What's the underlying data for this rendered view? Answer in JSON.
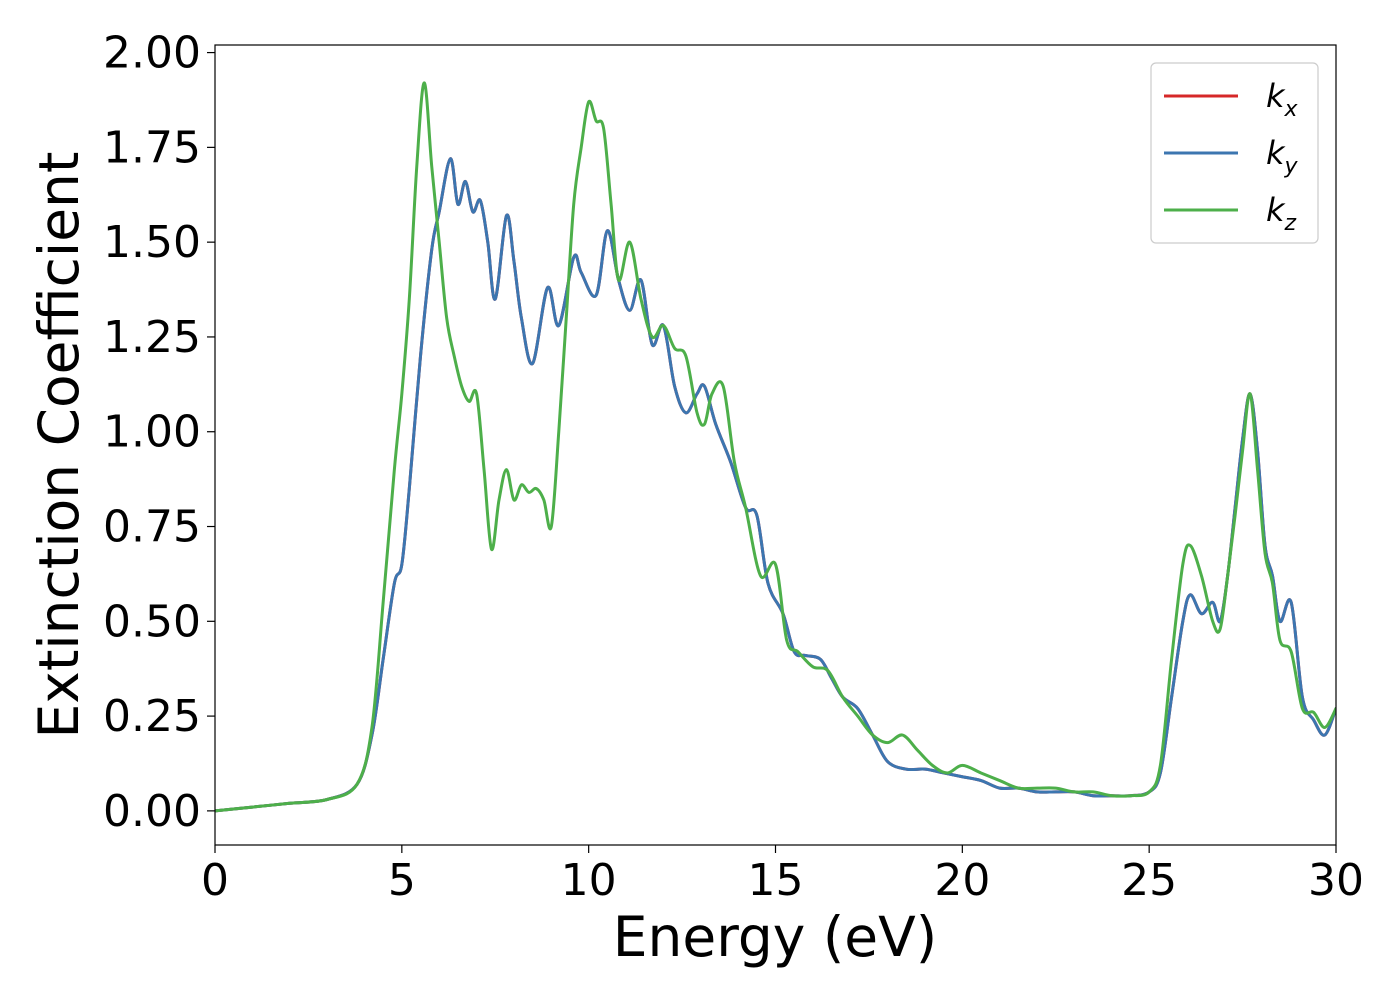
{
  "chart_data": {
    "type": "line",
    "title": "",
    "xlabel": "Energy (eV)",
    "ylabel": "Extinction Coefficient",
    "xlim": [
      0,
      30
    ],
    "ylim": [
      -0.09,
      2.02
    ],
    "xticks": [
      "0",
      "5",
      "10",
      "15",
      "20",
      "25",
      "30"
    ],
    "yticks": [
      "0.00",
      "0.25",
      "0.50",
      "0.75",
      "1.00",
      "1.25",
      "1.50",
      "1.75",
      "2.00"
    ],
    "grid": false,
    "legend_position": "top-right",
    "series": [
      {
        "name": "k_x",
        "legend_base": "k",
        "legend_sub": "x",
        "color": "#d62728",
        "x": [
          0,
          1,
          2,
          3,
          3.8,
          4.2,
          4.5,
          4.8,
          5.0,
          5.2,
          5.5,
          5.8,
          6.0,
          6.3,
          6.5,
          6.7,
          6.9,
          7.1,
          7.3,
          7.5,
          7.8,
          8.0,
          8.2,
          8.5,
          8.9,
          9.2,
          9.6,
          9.8,
          10.2,
          10.5,
          10.8,
          11.1,
          11.4,
          11.7,
          12.0,
          12.3,
          12.6,
          12.9,
          13.1,
          13.4,
          13.8,
          14.2,
          14.5,
          14.8,
          15.2,
          15.5,
          15.8,
          16.2,
          16.5,
          16.8,
          17.2,
          17.6,
          18.0,
          18.5,
          19.0,
          19.5,
          20.0,
          20.5,
          21.0,
          21.5,
          22.0,
          22.5,
          23.0,
          23.5,
          24.0,
          24.5,
          25.0,
          25.3,
          25.6,
          25.9,
          26.1,
          26.4,
          26.7,
          26.9,
          27.1,
          27.3,
          27.5,
          27.7,
          27.9,
          28.1,
          28.3,
          28.5,
          28.8,
          29.1,
          29.4,
          29.7,
          30.0
        ],
        "y": [
          0.0,
          0.01,
          0.02,
          0.03,
          0.07,
          0.2,
          0.4,
          0.6,
          0.65,
          0.85,
          1.2,
          1.48,
          1.58,
          1.72,
          1.6,
          1.66,
          1.58,
          1.61,
          1.5,
          1.35,
          1.57,
          1.45,
          1.3,
          1.18,
          1.38,
          1.28,
          1.46,
          1.42,
          1.36,
          1.53,
          1.4,
          1.32,
          1.4,
          1.23,
          1.28,
          1.12,
          1.05,
          1.1,
          1.12,
          1.02,
          0.92,
          0.8,
          0.78,
          0.6,
          0.52,
          0.42,
          0.41,
          0.4,
          0.35,
          0.3,
          0.27,
          0.2,
          0.13,
          0.11,
          0.11,
          0.1,
          0.09,
          0.08,
          0.06,
          0.06,
          0.05,
          0.05,
          0.05,
          0.04,
          0.04,
          0.04,
          0.05,
          0.1,
          0.3,
          0.5,
          0.57,
          0.52,
          0.55,
          0.5,
          0.62,
          0.8,
          0.98,
          1.1,
          0.95,
          0.7,
          0.62,
          0.5,
          0.55,
          0.3,
          0.24,
          0.2,
          0.27
        ]
      },
      {
        "name": "k_y",
        "legend_base": "k",
        "legend_sub": "y",
        "color": "#3c76b0",
        "x": [
          0,
          1,
          2,
          3,
          3.8,
          4.2,
          4.5,
          4.8,
          5.0,
          5.2,
          5.5,
          5.8,
          6.0,
          6.3,
          6.5,
          6.7,
          6.9,
          7.1,
          7.3,
          7.5,
          7.8,
          8.0,
          8.2,
          8.5,
          8.9,
          9.2,
          9.6,
          9.8,
          10.2,
          10.5,
          10.8,
          11.1,
          11.4,
          11.7,
          12.0,
          12.3,
          12.6,
          12.9,
          13.1,
          13.4,
          13.8,
          14.2,
          14.5,
          14.8,
          15.2,
          15.5,
          15.8,
          16.2,
          16.5,
          16.8,
          17.2,
          17.6,
          18.0,
          18.5,
          19.0,
          19.5,
          20.0,
          20.5,
          21.0,
          21.5,
          22.0,
          22.5,
          23.0,
          23.5,
          24.0,
          24.5,
          25.0,
          25.3,
          25.6,
          25.9,
          26.1,
          26.4,
          26.7,
          26.9,
          27.1,
          27.3,
          27.5,
          27.7,
          27.9,
          28.1,
          28.3,
          28.5,
          28.8,
          29.1,
          29.4,
          29.7,
          30.0
        ],
        "y": [
          0.0,
          0.01,
          0.02,
          0.03,
          0.07,
          0.2,
          0.4,
          0.6,
          0.65,
          0.85,
          1.2,
          1.48,
          1.58,
          1.72,
          1.6,
          1.66,
          1.58,
          1.61,
          1.5,
          1.35,
          1.57,
          1.45,
          1.3,
          1.18,
          1.38,
          1.28,
          1.46,
          1.42,
          1.36,
          1.53,
          1.4,
          1.32,
          1.4,
          1.23,
          1.28,
          1.12,
          1.05,
          1.1,
          1.12,
          1.02,
          0.92,
          0.8,
          0.78,
          0.6,
          0.52,
          0.42,
          0.41,
          0.4,
          0.35,
          0.3,
          0.27,
          0.2,
          0.13,
          0.11,
          0.11,
          0.1,
          0.09,
          0.08,
          0.06,
          0.06,
          0.05,
          0.05,
          0.05,
          0.04,
          0.04,
          0.04,
          0.05,
          0.1,
          0.3,
          0.5,
          0.57,
          0.52,
          0.55,
          0.5,
          0.62,
          0.8,
          0.98,
          1.1,
          0.95,
          0.7,
          0.62,
          0.5,
          0.55,
          0.3,
          0.24,
          0.2,
          0.27
        ]
      },
      {
        "name": "k_z",
        "legend_base": "k",
        "legend_sub": "z",
        "color": "#4daf4a",
        "x": [
          0,
          1,
          2,
          3,
          3.8,
          4.2,
          4.5,
          4.8,
          5.0,
          5.2,
          5.4,
          5.6,
          5.8,
          6.0,
          6.2,
          6.4,
          6.6,
          6.8,
          7.0,
          7.2,
          7.4,
          7.6,
          7.8,
          8.0,
          8.2,
          8.4,
          8.6,
          8.8,
          9.0,
          9.2,
          9.4,
          9.6,
          9.8,
          10.0,
          10.2,
          10.4,
          10.6,
          10.8,
          11.1,
          11.4,
          11.7,
          12.0,
          12.3,
          12.6,
          12.9,
          13.1,
          13.3,
          13.6,
          13.9,
          14.2,
          14.6,
          15.0,
          15.3,
          15.6,
          16.0,
          16.4,
          16.8,
          17.2,
          17.6,
          18.0,
          18.4,
          18.8,
          19.2,
          19.6,
          20.0,
          20.5,
          21.0,
          21.5,
          22.0,
          22.5,
          23.0,
          23.5,
          24.0,
          24.5,
          25.0,
          25.3,
          25.6,
          25.9,
          26.1,
          26.4,
          26.7,
          26.9,
          27.1,
          27.3,
          27.5,
          27.7,
          27.9,
          28.1,
          28.3,
          28.5,
          28.8,
          29.1,
          29.4,
          29.7,
          30.0
        ],
        "y": [
          0.0,
          0.01,
          0.02,
          0.03,
          0.07,
          0.22,
          0.55,
          0.9,
          1.1,
          1.35,
          1.7,
          1.92,
          1.7,
          1.5,
          1.3,
          1.2,
          1.12,
          1.08,
          1.1,
          0.9,
          0.69,
          0.82,
          0.9,
          0.82,
          0.86,
          0.84,
          0.85,
          0.82,
          0.75,
          1.0,
          1.3,
          1.6,
          1.75,
          1.87,
          1.82,
          1.8,
          1.6,
          1.4,
          1.5,
          1.35,
          1.25,
          1.28,
          1.22,
          1.2,
          1.05,
          1.02,
          1.1,
          1.12,
          0.92,
          0.8,
          0.62,
          0.65,
          0.45,
          0.42,
          0.38,
          0.37,
          0.3,
          0.25,
          0.2,
          0.18,
          0.2,
          0.16,
          0.12,
          0.1,
          0.12,
          0.1,
          0.08,
          0.06,
          0.06,
          0.06,
          0.05,
          0.05,
          0.04,
          0.04,
          0.05,
          0.12,
          0.4,
          0.65,
          0.7,
          0.62,
          0.5,
          0.48,
          0.62,
          0.78,
          0.95,
          1.1,
          0.9,
          0.68,
          0.6,
          0.45,
          0.42,
          0.27,
          0.26,
          0.22,
          0.27
        ]
      }
    ]
  }
}
